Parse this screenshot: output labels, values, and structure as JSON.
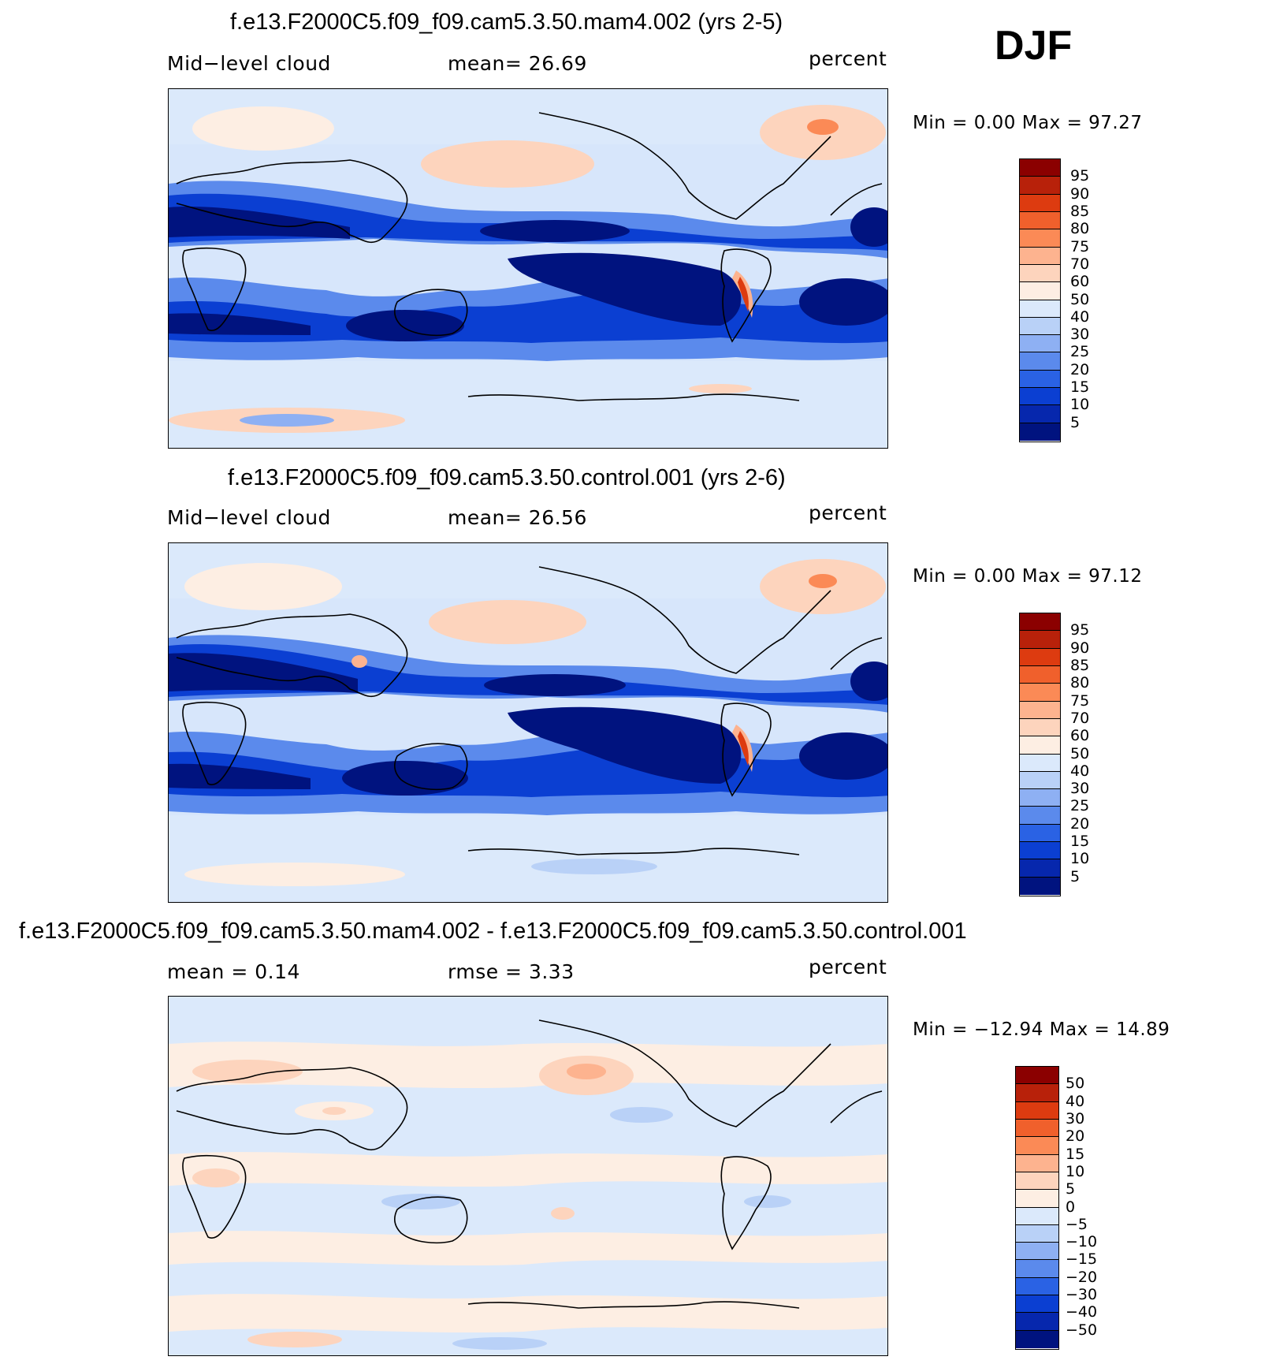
{
  "season": "DJF",
  "panels": [
    {
      "title": "f.e13.F2000C5.f09_f09.cam5.3.50.mam4.002 (yrs 2-5)",
      "left_label": "Mid−level  cloud",
      "center_label": "mean=   26.69",
      "units": "percent",
      "minmax": "Min  =     0.00  Max  =    97.27",
      "colorbar": {
        "labels": [
          "95",
          "90",
          "85",
          "80",
          "75",
          "70",
          "60",
          "50",
          "40",
          "30",
          "25",
          "20",
          "15",
          "10",
          "5"
        ],
        "colors": [
          "#8b0000",
          "#b8210a",
          "#dd3b10",
          "#f0602c",
          "#fb8a56",
          "#fdb38f",
          "#fdd4bd",
          "#fdeee3",
          "#dbe9fb",
          "#b9d1f7",
          "#8eb0f3",
          "#5b8aec",
          "#2a62e4",
          "#0b3fd2",
          "#0627ad",
          "#00137f"
        ]
      }
    },
    {
      "title": "f.e13.F2000C5.f09_f09.cam5.3.50.control.001 (yrs 2-6)",
      "left_label": "Mid−level  cloud",
      "center_label": "mean=   26.56",
      "units": "percent",
      "minmax": "Min  =     0.00  Max  =    97.12",
      "colorbar": {
        "labels": [
          "95",
          "90",
          "85",
          "80",
          "75",
          "70",
          "60",
          "50",
          "40",
          "30",
          "25",
          "20",
          "15",
          "10",
          "5"
        ],
        "colors": [
          "#8b0000",
          "#b8210a",
          "#dd3b10",
          "#f0602c",
          "#fb8a56",
          "#fdb38f",
          "#fdd4bd",
          "#fdeee3",
          "#dbe9fb",
          "#b9d1f7",
          "#8eb0f3",
          "#5b8aec",
          "#2a62e4",
          "#0b3fd2",
          "#0627ad",
          "#00137f"
        ]
      }
    },
    {
      "title": "f.e13.F2000C5.f09_f09.cam5.3.50.mam4.002 - f.e13.F2000C5.f09_f09.cam5.3.50.control.001",
      "left_label": "mean  =     0.14",
      "center_label": "rmse  =     3.33",
      "units": "percent",
      "minmax": "Min  =  −12.94  Max  =    14.89",
      "colorbar": {
        "labels": [
          "50",
          "40",
          "30",
          "20",
          "15",
          "10",
          "5",
          "0",
          "−5",
          "−10",
          "−15",
          "−20",
          "−30",
          "−40",
          "−50"
        ],
        "colors": [
          "#8b0000",
          "#b8210a",
          "#dd3b10",
          "#f0602c",
          "#fb8a56",
          "#fdb38f",
          "#fdd4bd",
          "#fdeee3",
          "#dbe9fb",
          "#b9d1f7",
          "#8eb0f3",
          "#5b8aec",
          "#2a62e4",
          "#0b3fd2",
          "#0627ad",
          "#00137f"
        ]
      }
    }
  ]
}
